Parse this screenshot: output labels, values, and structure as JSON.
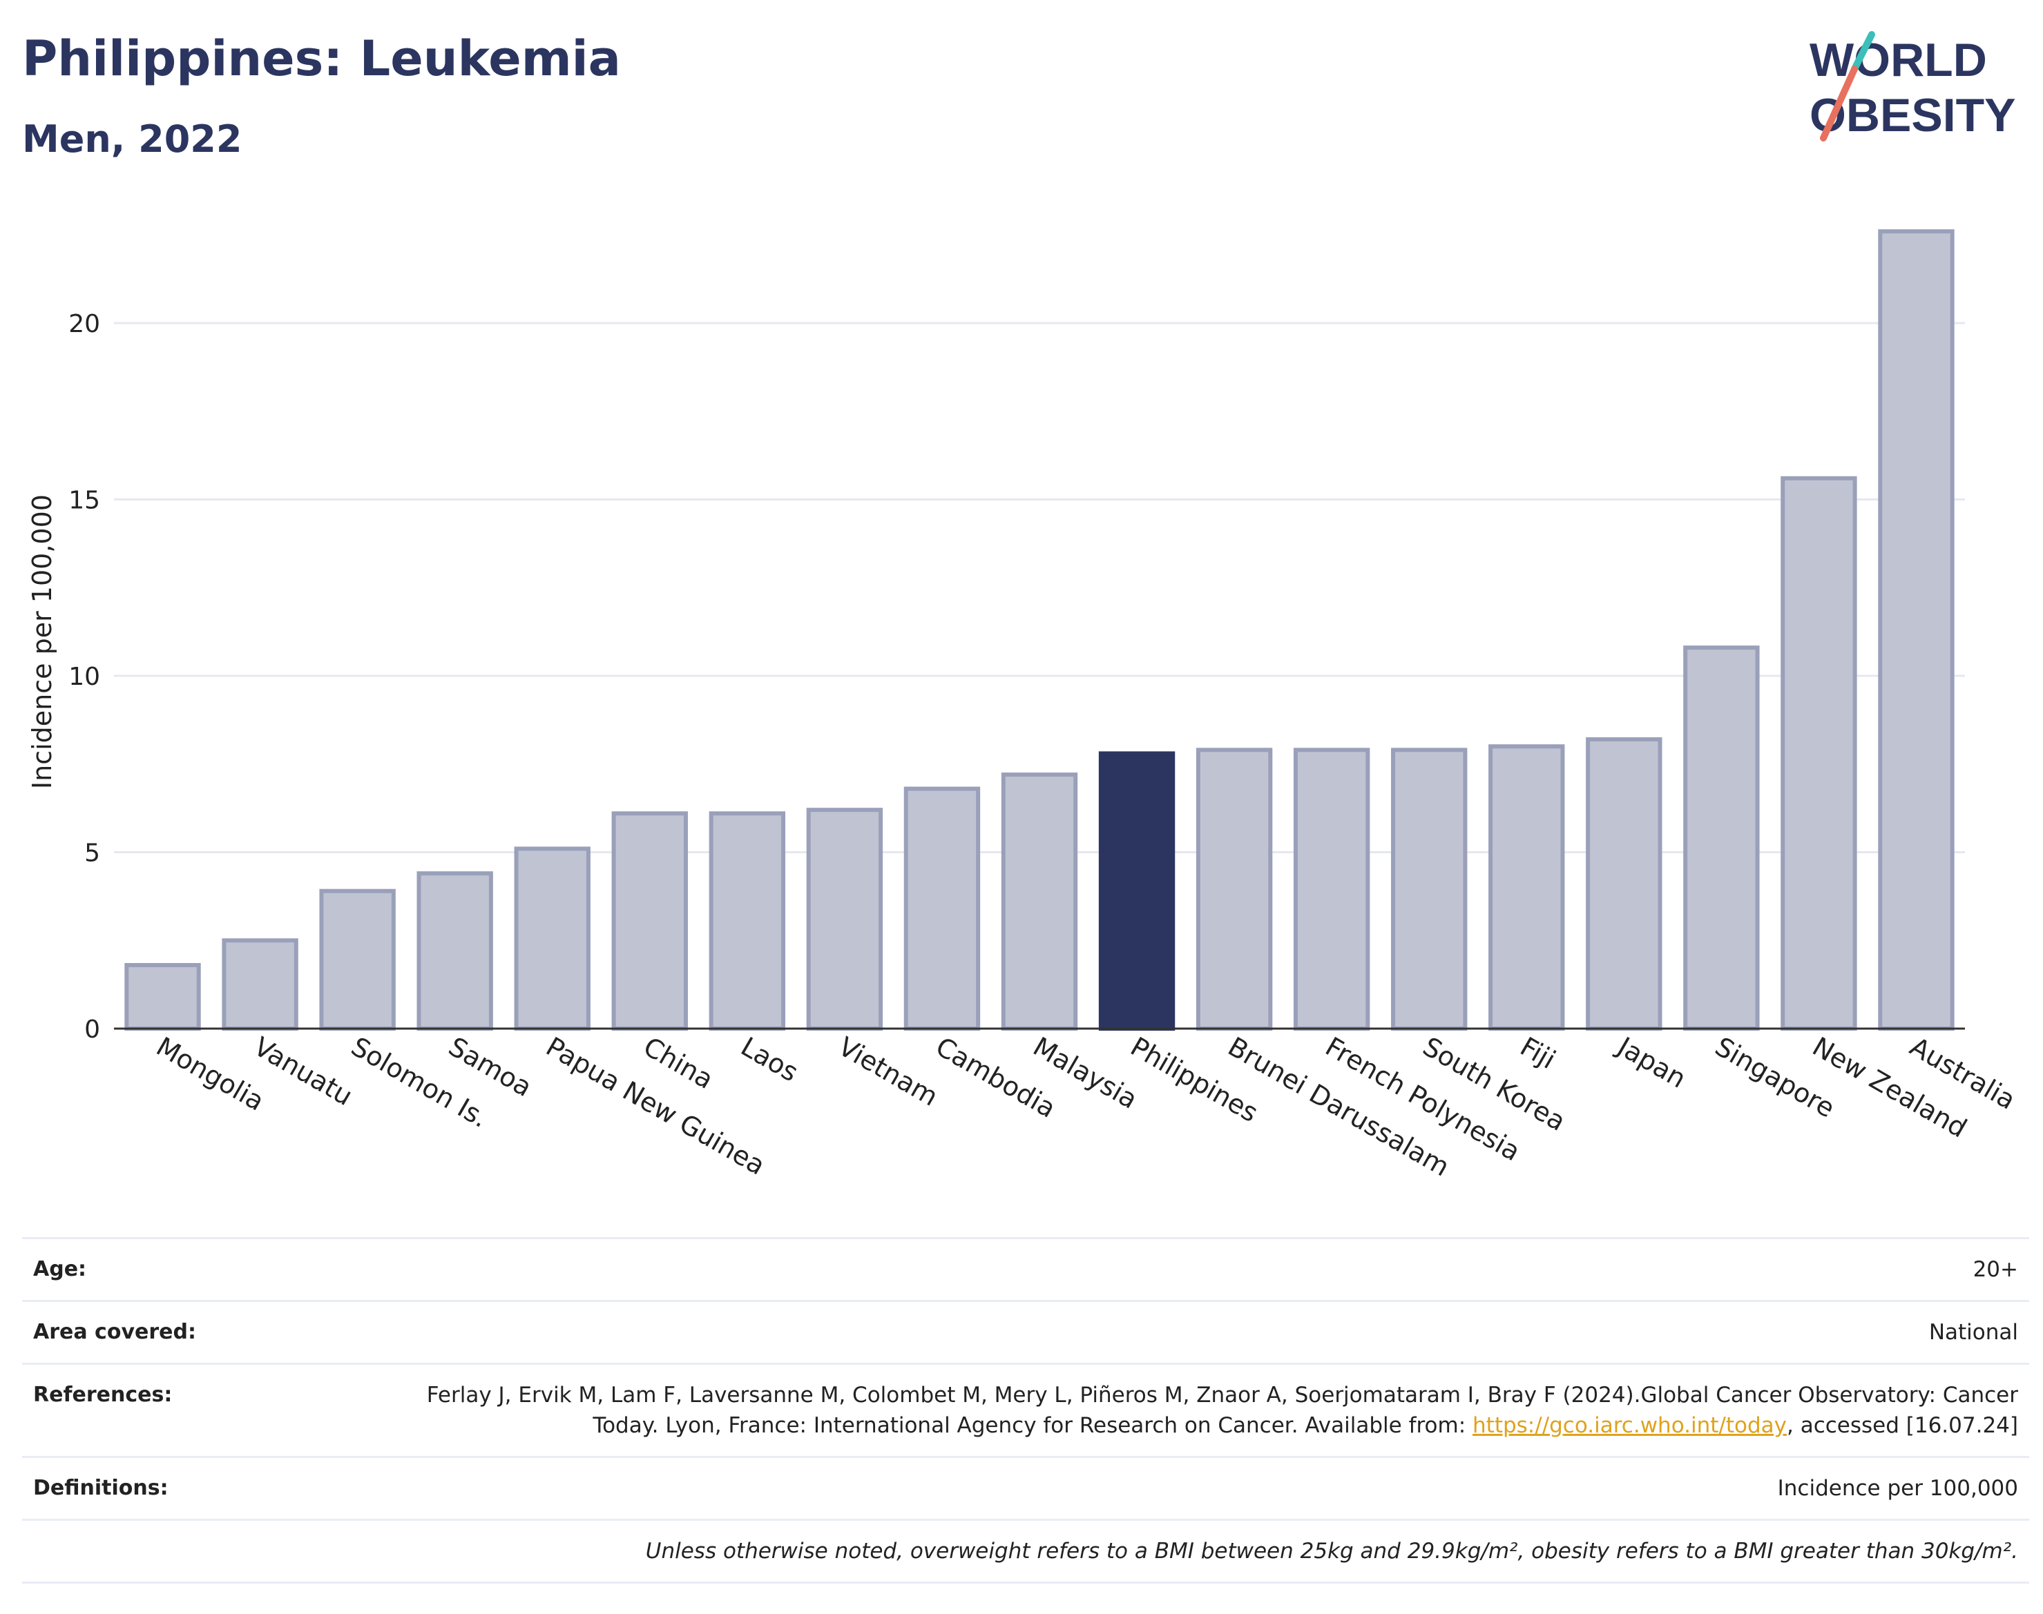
{
  "header": {
    "title": "Philippines: Leukemia",
    "subtitle": "Men, 2022"
  },
  "logo": {
    "line1": "WORLD",
    "line2": "OBESITY"
  },
  "colors": {
    "highlight": "#2b3560",
    "bar_fill": "#c0c4d2",
    "bar_stroke": "#9aa0ba",
    "grid": "#e6e8f0",
    "logo_teal": "#3bbfb8",
    "logo_coral": "#e8705e"
  },
  "chart_data": {
    "type": "bar",
    "categories": [
      "Mongolia",
      "Vanuatu",
      "Solomon Is.",
      "Samoa",
      "Papua New Guinea",
      "China",
      "Laos",
      "Vietnam",
      "Cambodia",
      "Malaysia",
      "Philippines",
      "Brunei Darussalam",
      "French Polynesia",
      "South Korea",
      "Fiji",
      "Japan",
      "Singapore",
      "New Zealand",
      "Australia"
    ],
    "values": [
      1.8,
      2.5,
      3.9,
      4.4,
      5.1,
      6.1,
      6.1,
      6.2,
      6.8,
      7.2,
      7.8,
      7.9,
      7.9,
      7.9,
      8.0,
      8.2,
      10.8,
      15.6,
      22.6
    ],
    "highlight": "Philippines",
    "ylabel": "Incidence per 100,000",
    "xlabel": "",
    "ylim": [
      0,
      23.5
    ],
    "yticks": [
      0,
      5,
      10,
      15,
      20
    ],
    "grid": true
  },
  "meta": {
    "age_label": "Age:",
    "age_value": "20+",
    "area_label": "Area covered:",
    "area_value": "National",
    "references_label": "References:",
    "references_text": "Ferlay J, Ervik M, Lam F, Laversanne M, Colombet M, Mery L, Piñeros M, Znaor A, Soerjomataram I, Bray F (2024).Global Cancer Observatory: Cancer Today. Lyon, France: International Agency for Research on Cancer. Available from: ",
    "references_link": "https://gco.iarc.who.int/today",
    "references_suffix": ", accessed [16.07.24]",
    "definitions_label": "Definitions:",
    "definitions_value": "Incidence per 100,000",
    "note": "Unless otherwise noted, overweight refers to a BMI between 25kg and 29.9kg/m², obesity refers to a BMI greater than 30kg/m²."
  }
}
